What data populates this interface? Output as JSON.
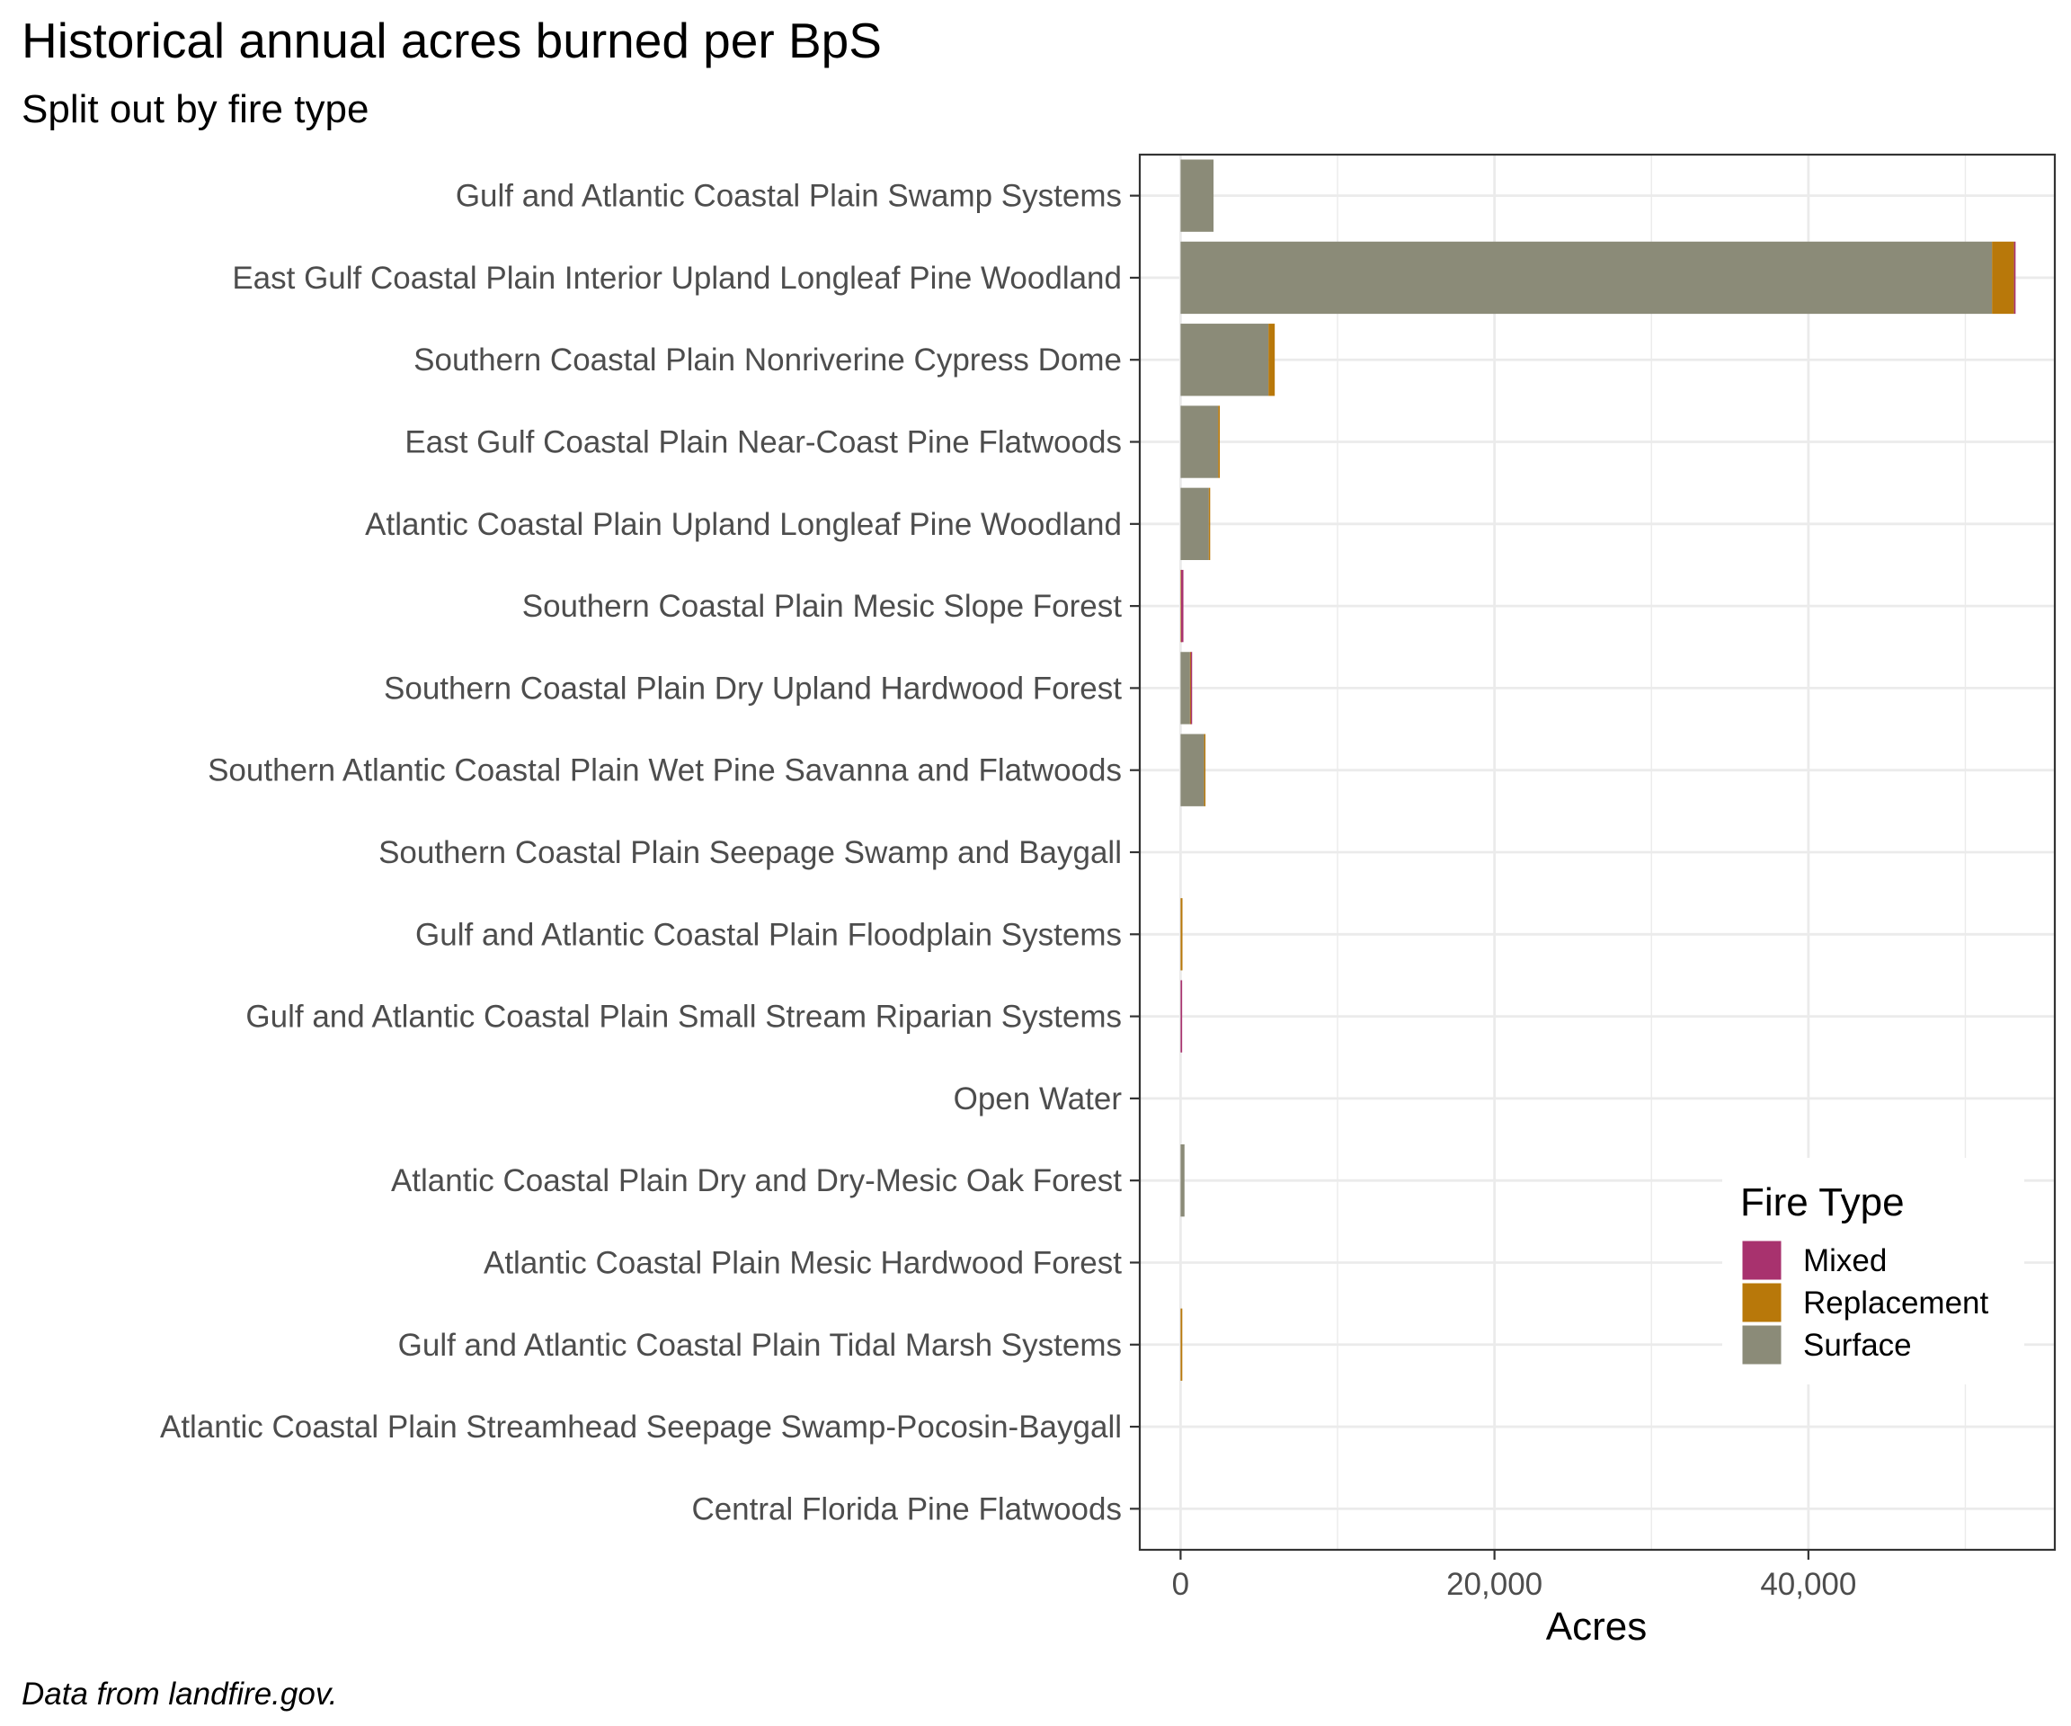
{
  "chart_data": {
    "type": "bar",
    "orientation": "horizontal",
    "stacked": true,
    "title": "Historical annual acres burned per BpS",
    "subtitle": "Split out by fire type",
    "caption": "Data from landfire.gov.",
    "xlabel": "Acres",
    "ylabel": "",
    "xlim": [
      -2600,
      55700
    ],
    "xticks": [
      0,
      20000,
      40000
    ],
    "xtick_labels": [
      "0",
      "20,000",
      "40,000"
    ],
    "grid": true,
    "legend_position": "bottom-right",
    "legend_title": "Fire Type",
    "categories": [
      "Gulf and Atlantic Coastal Plain Swamp Systems",
      "East Gulf Coastal Plain Interior Upland Longleaf Pine Woodland",
      "Southern Coastal Plain Nonriverine Cypress Dome",
      "East Gulf Coastal Plain Near-Coast Pine Flatwoods",
      "Atlantic Coastal Plain Upland Longleaf Pine Woodland",
      "Southern Coastal Plain Mesic Slope Forest",
      "Southern Coastal Plain Dry Upland Hardwood Forest",
      "Southern Atlantic Coastal Plain Wet Pine Savanna and Flatwoods",
      "Southern Coastal Plain Seepage Swamp and Baygall",
      "Gulf and Atlantic Coastal Plain Floodplain Systems",
      "Gulf and Atlantic Coastal Plain Small Stream Riparian Systems",
      "Open Water",
      "Atlantic Coastal Plain Dry and Dry-Mesic Oak Forest",
      "Atlantic Coastal Plain Mesic Hardwood Forest",
      "Gulf and Atlantic Coastal Plain Tidal Marsh Systems",
      "Atlantic Coastal Plain Streamhead Seepage Swamp-Pocosin-Baygall",
      "Central Florida Pine Flatwoods"
    ],
    "series": [
      {
        "name": "Surface",
        "color": "#8b8b78",
        "values": [
          2100,
          51700,
          5600,
          2400,
          1800,
          0,
          600,
          1500,
          0,
          0,
          0,
          0,
          250,
          0,
          0,
          0,
          0
        ]
      },
      {
        "name": "Replacement",
        "color": "#b8780a",
        "values": [
          0,
          1400,
          400,
          100,
          50,
          30,
          50,
          60,
          0,
          120,
          0,
          0,
          0,
          0,
          110,
          0,
          0
        ]
      },
      {
        "name": "Mixed",
        "color": "#a8326e",
        "values": [
          0,
          100,
          0,
          0,
          0,
          150,
          80,
          0,
          0,
          0,
          100,
          0,
          0,
          0,
          0,
          0,
          0
        ]
      }
    ],
    "legend_order": [
      "Mixed",
      "Replacement",
      "Surface"
    ]
  }
}
